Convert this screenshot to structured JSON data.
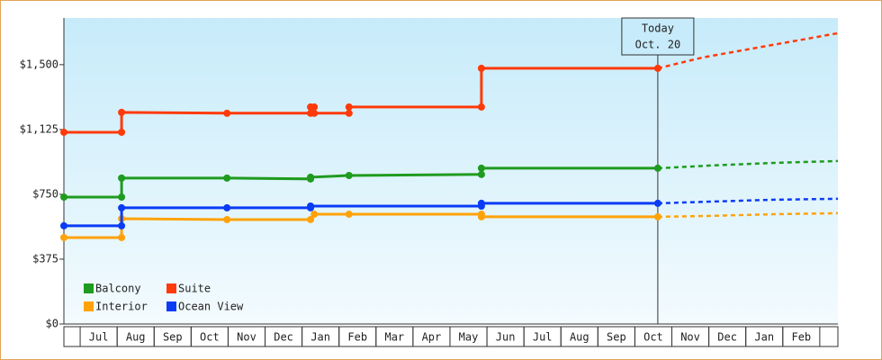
{
  "chart_data": {
    "type": "step-line",
    "xlim": [
      -0.44,
      20.49
    ],
    "xticks": [
      {
        "value": 0.5,
        "label": "Jul"
      },
      {
        "value": 1.5,
        "label": "Aug"
      },
      {
        "value": 2.5,
        "label": "Sep"
      },
      {
        "value": 3.5,
        "label": "Oct"
      },
      {
        "value": 4.5,
        "label": "Nov"
      },
      {
        "value": 5.5,
        "label": "Dec"
      },
      {
        "value": 6.5,
        "label": "Jan"
      },
      {
        "value": 7.5,
        "label": "Feb"
      },
      {
        "value": 8.5,
        "label": "Mar"
      },
      {
        "value": 9.5,
        "label": "Apr"
      },
      {
        "value": 10.5,
        "label": "May"
      },
      {
        "value": 11.5,
        "label": "Jun"
      },
      {
        "value": 12.5,
        "label": "Jul"
      },
      {
        "value": 13.5,
        "label": "Aug"
      },
      {
        "value": 14.5,
        "label": "Sep"
      },
      {
        "value": 15.5,
        "label": "Oct"
      },
      {
        "value": 16.5,
        "label": "Nov"
      },
      {
        "value": 17.5,
        "label": "Dec"
      },
      {
        "value": 18.5,
        "label": "Jan"
      },
      {
        "value": 19.5,
        "label": "Feb"
      }
    ],
    "ylim": [
      0,
      1770
    ],
    "yticks": [
      {
        "value": 0,
        "label": "$0"
      },
      {
        "value": 375,
        "label": "$375"
      },
      {
        "value": 750,
        "label": "$750"
      },
      {
        "value": 1125,
        "label": "$1,125"
      },
      {
        "value": 1500,
        "label": "$1,500"
      }
    ],
    "legend": "lower left",
    "annotation": {
      "x": 15.62,
      "lines": [
        "Today",
        "Oct. 20"
      ]
    },
    "series": [
      {
        "name": "Balcony",
        "color": "#1f9b1f",
        "x": [
          -0.44,
          1.12,
          1.12,
          3.97,
          6.23,
          6.23,
          7.27,
          10.85,
          10.85,
          15.62
        ],
        "values": [
          734,
          734,
          844,
          844,
          839,
          849,
          859,
          865,
          901,
          901
        ],
        "projection": {
          "x": [
            15.62,
            17.06,
            18.76,
            20.49
          ],
          "values": [
            901,
            917,
            932,
            943
          ]
        }
      },
      {
        "name": "Suite",
        "color": "#ff3a0a",
        "x": [
          -0.44,
          1.12,
          1.12,
          3.97,
          6.23,
          6.23,
          6.33,
          6.33,
          7.27,
          7.27,
          10.85,
          10.85,
          15.62
        ],
        "values": [
          1109,
          1109,
          1224,
          1219,
          1219,
          1255,
          1255,
          1219,
          1219,
          1255,
          1255,
          1479,
          1479
        ],
        "projection": {
          "x": [
            15.62,
            16.84,
            20.49
          ],
          "values": [
            1479,
            1542,
            1682
          ]
        }
      },
      {
        "name": "Interior",
        "color": "#ffa20a",
        "x": [
          -0.44,
          1.12,
          1.12,
          3.97,
          6.23,
          6.33,
          7.27,
          10.85,
          10.85,
          15.62
        ],
        "values": [
          500,
          500,
          609,
          604,
          604,
          635,
          635,
          635,
          620,
          620
        ],
        "projection": {
          "x": [
            15.62,
            17.06,
            18.76,
            20.49
          ],
          "values": [
            620,
            625,
            635,
            641
          ]
        }
      },
      {
        "name": "Ocean View",
        "color": "#0a3cf5",
        "x": [
          -0.44,
          1.12,
          1.12,
          3.97,
          6.23,
          6.23,
          10.85,
          10.85,
          15.62
        ],
        "values": [
          568,
          568,
          672,
          672,
          672,
          682,
          682,
          698,
          698
        ],
        "projection": {
          "x": [
            15.62,
            17.06,
            18.76,
            20.49
          ],
          "values": [
            698,
            708,
            719,
            724
          ]
        }
      }
    ]
  }
}
